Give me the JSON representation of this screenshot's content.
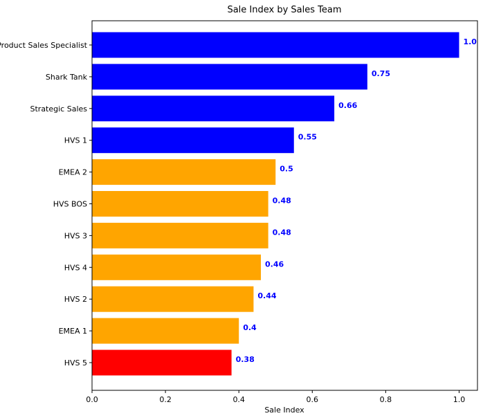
{
  "chart_data": {
    "type": "bar",
    "orientation": "horizontal",
    "title": "Sale Index by Sales Team",
    "xlabel": "Sale Index",
    "ylabel": "",
    "xlim": [
      0,
      1.05
    ],
    "xticks": [
      0.0,
      0.2,
      0.4,
      0.6,
      0.8,
      1.0
    ],
    "xtick_labels": [
      "0.0",
      "0.2",
      "0.4",
      "0.6",
      "0.8",
      "1.0"
    ],
    "grid": false,
    "data_label_color": "#0000ff",
    "categories": [
      "Product Sales Specialist",
      "Shark Tank",
      "Strategic Sales",
      "HVS 1",
      "EMEA 2",
      "HVS BOS",
      "HVS 3",
      "HVS 4",
      "HVS 2",
      "EMEA 1",
      "HVS 5"
    ],
    "values": [
      1.0,
      0.75,
      0.66,
      0.55,
      0.5,
      0.48,
      0.48,
      0.46,
      0.44,
      0.4,
      0.38
    ],
    "value_labels": [
      "1.0",
      "0.75",
      "0.66",
      "0.55",
      "0.5",
      "0.48",
      "0.48",
      "0.46",
      "0.44",
      "0.4",
      "0.38"
    ],
    "colors": [
      "#0000ff",
      "#0000ff",
      "#0000ff",
      "#0000ff",
      "#ffa500",
      "#ffa500",
      "#ffa500",
      "#ffa500",
      "#ffa500",
      "#ffa500",
      "#ff0000"
    ]
  }
}
